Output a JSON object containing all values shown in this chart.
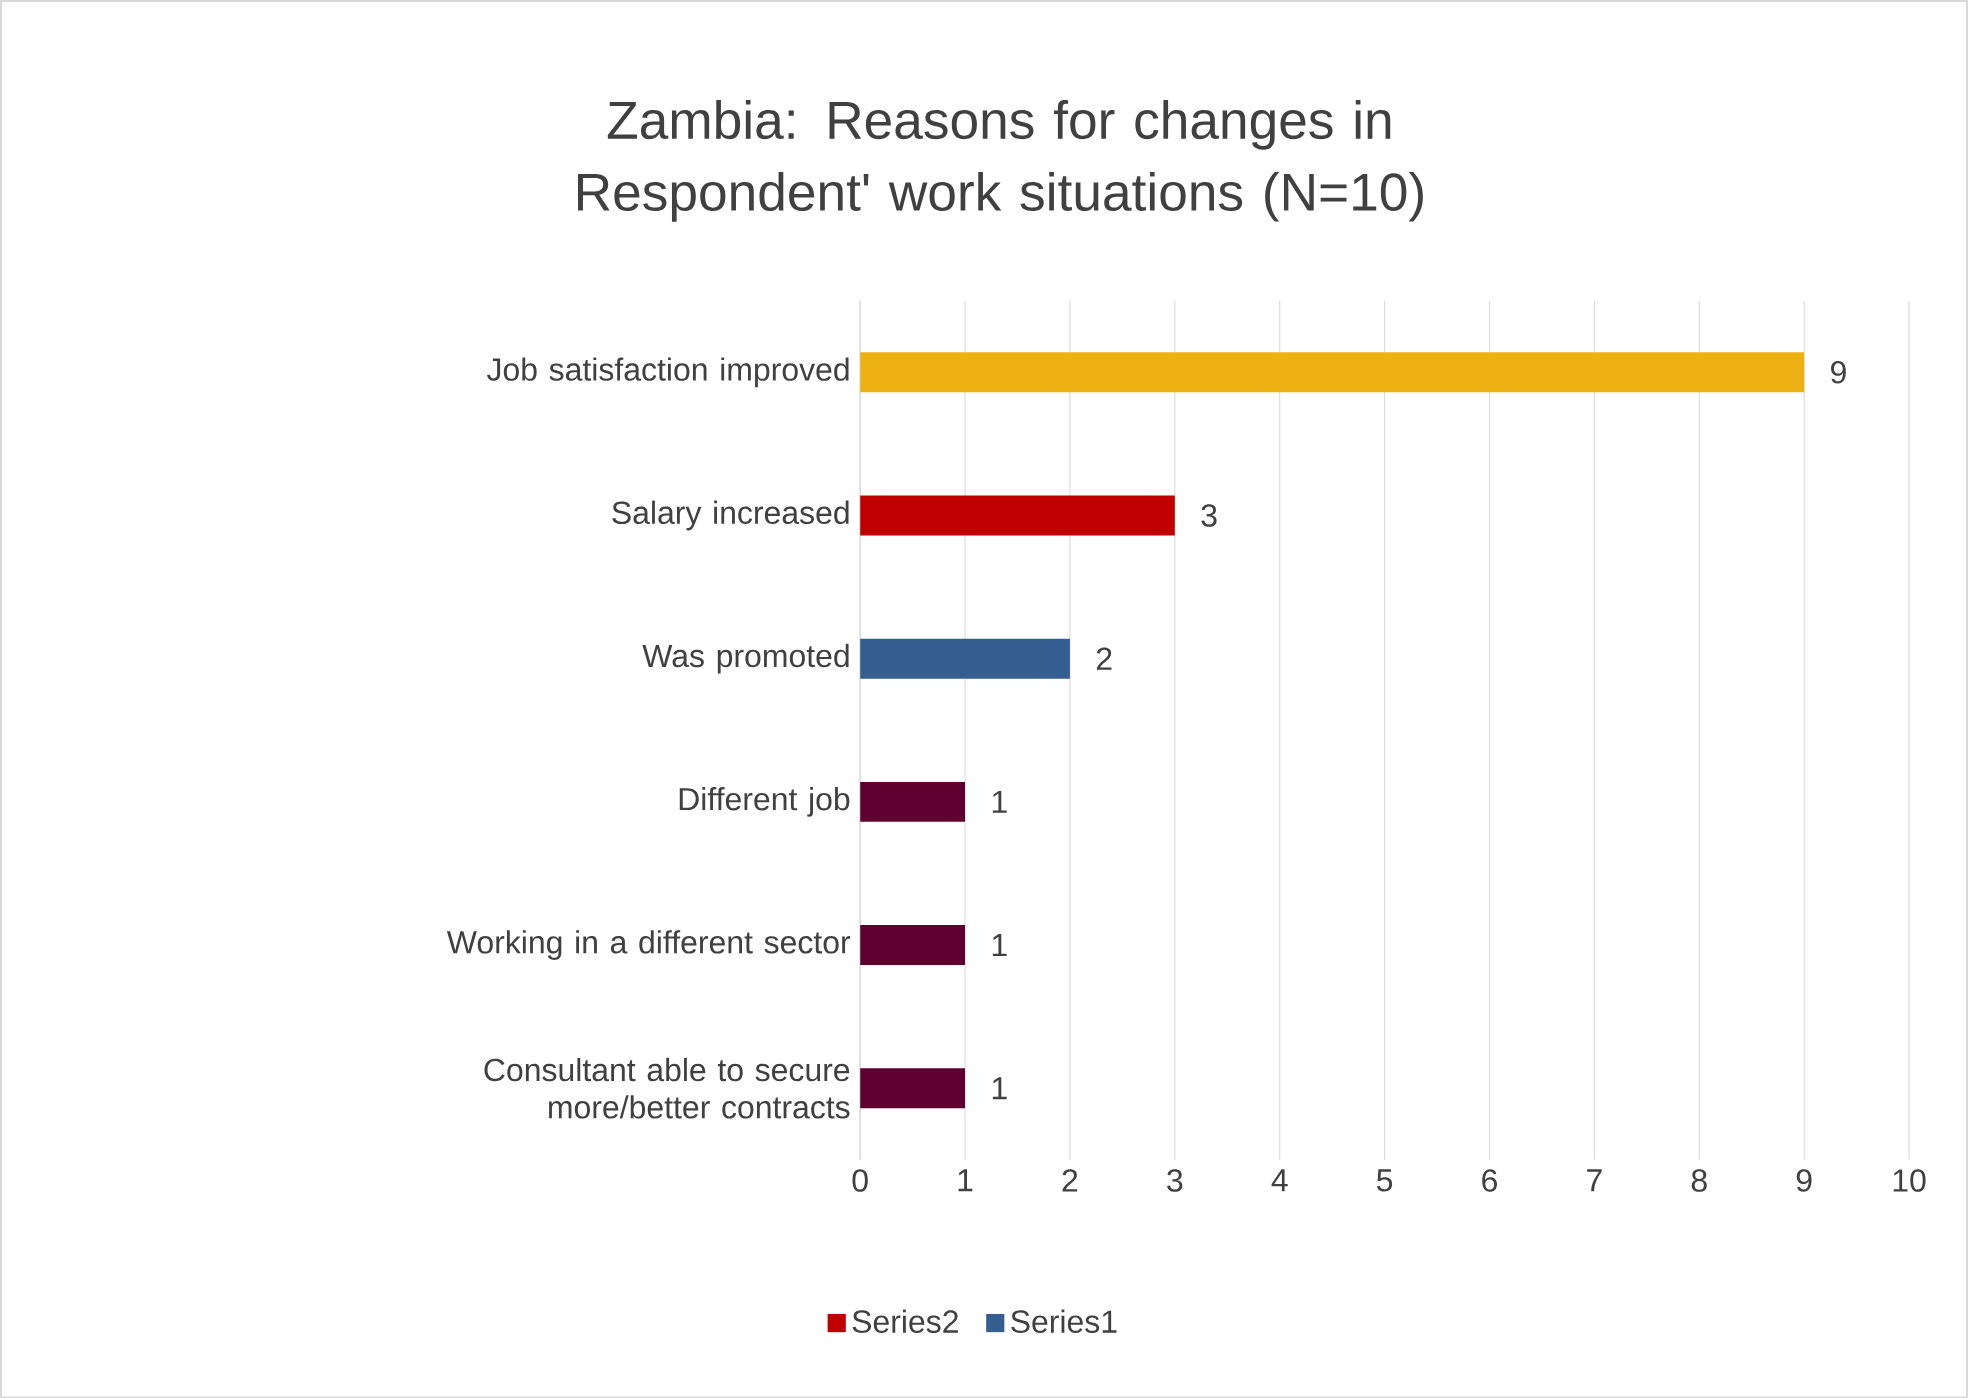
{
  "chart_data": {
    "type": "bar",
    "orientation": "horizontal",
    "title": "Zambia: Reasons for changes in Respondent' work situations (N=10)",
    "categories": [
      "Job satisfaction improved",
      "Salary increased",
      "Was promoted",
      "Different job",
      "Working in a different sector",
      "Consultant able to secure more/better contracts"
    ],
    "series": [
      {
        "name": "Series2",
        "color": "#c00000",
        "colors": [
          "#edb013",
          "#c00000",
          "#c00000",
          "#600030",
          "#600030",
          "#600030"
        ],
        "values": [
          9,
          3,
          null,
          1,
          1,
          1
        ]
      },
      {
        "name": "Series1",
        "color": "#345f90",
        "values": [
          null,
          null,
          2,
          null,
          null,
          null
        ]
      }
    ],
    "xlim": [
      0,
      10
    ],
    "xticks": [
      0,
      1,
      2,
      3,
      4,
      5,
      6,
      7,
      8,
      9,
      10
    ],
    "grid": "x",
    "legend": "bottom",
    "data_labels": true
  }
}
